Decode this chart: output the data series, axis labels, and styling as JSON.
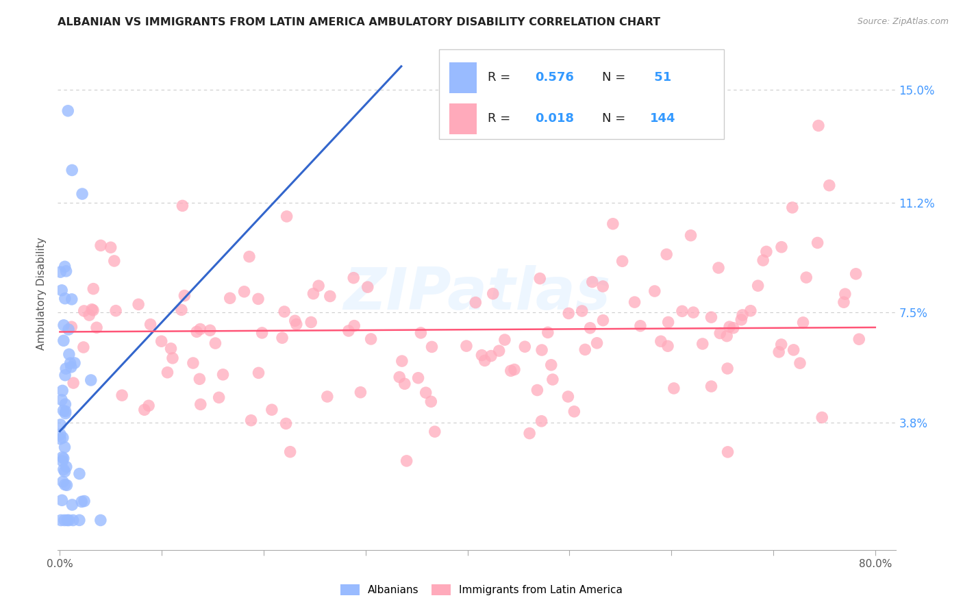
{
  "title": "ALBANIAN VS IMMIGRANTS FROM LATIN AMERICA AMBULATORY DISABILITY CORRELATION CHART",
  "source": "Source: ZipAtlas.com",
  "ylabel": "Ambulatory Disability",
  "ytick_labels": [
    "3.8%",
    "7.5%",
    "11.2%",
    "15.0%"
  ],
  "ytick_values": [
    0.038,
    0.075,
    0.112,
    0.15
  ],
  "xlim": [
    -0.002,
    0.82
  ],
  "ylim": [
    -0.005,
    0.168
  ],
  "legend_label1": "Albanians",
  "legend_label2": "Immigrants from Latin America",
  "R1": 0.576,
  "N1": 51,
  "R2": 0.018,
  "N2": 144,
  "color_blue": "#99BBFF",
  "color_pink": "#FFAABB",
  "color_line_blue": "#3366CC",
  "color_line_pink": "#FF5577",
  "watermark_text": "ZIPatlas",
  "blue_line_x0": 0.0,
  "blue_line_y0": 0.035,
  "blue_line_x1": 0.335,
  "blue_line_y1": 0.158,
  "pink_line_x0": 0.0,
  "pink_line_y0": 0.0685,
  "pink_line_x1": 0.8,
  "pink_line_y1": 0.07
}
